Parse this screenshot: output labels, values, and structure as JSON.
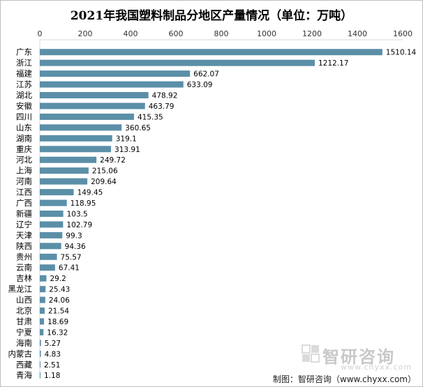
{
  "chart_data": {
    "type": "bar",
    "orientation": "horizontal",
    "title": "2021年我国塑料制品分地区产量情况（单位：万吨）",
    "categories": [
      "广东",
      "浙江",
      "福建",
      "江苏",
      "湖北",
      "安徽",
      "四川",
      "山东",
      "湖南",
      "重庆",
      "河北",
      "上海",
      "河南",
      "江西",
      "广西",
      "新疆",
      "辽宁",
      "天津",
      "陕西",
      "贵州",
      "云南",
      "吉林",
      "黑龙江",
      "山西",
      "北京",
      "甘肃",
      "宁夏",
      "海南",
      "内蒙古",
      "西藏",
      "青海"
    ],
    "values": [
      1510.14,
      1212.17,
      662.07,
      633.09,
      478.92,
      463.79,
      415.35,
      360.65,
      319.1,
      313.91,
      249.72,
      215.06,
      209.64,
      149.45,
      118.95,
      103.5,
      102.79,
      99.3,
      94.36,
      75.57,
      67.41,
      29.2,
      25.43,
      24.06,
      21.54,
      18.69,
      16.32,
      5.27,
      4.83,
      2.51,
      1.18
    ],
    "value_labels": [
      "1510.14",
      "1212.17",
      "662.07",
      "633.09",
      "478.92",
      "463.79",
      "415.35",
      "360.65",
      "319.1",
      "313.91",
      "249.72",
      "215.06",
      "209.64",
      "149.45",
      "118.95",
      "103.5",
      "102.79",
      "99.3",
      "94.36",
      "75.57",
      "67.41",
      "29.2",
      "25.43",
      "24.06",
      "21.54",
      "18.69",
      "16.32",
      "5.27",
      "4.83",
      "2.51",
      "1.18"
    ],
    "x_ticks": [
      "0",
      "200",
      "400",
      "600",
      "800",
      "1000",
      "1200",
      "1400",
      "1600"
    ],
    "xlim": [
      0,
      1600
    ],
    "axis_position": "top",
    "grid": false,
    "legend": "none",
    "bar_color": "#5b8fa8"
  },
  "watermark": {
    "brand": "智研咨询",
    "url": "www.chyxx.com"
  },
  "source": "制图：智研咨询（www.chyxx.com）"
}
